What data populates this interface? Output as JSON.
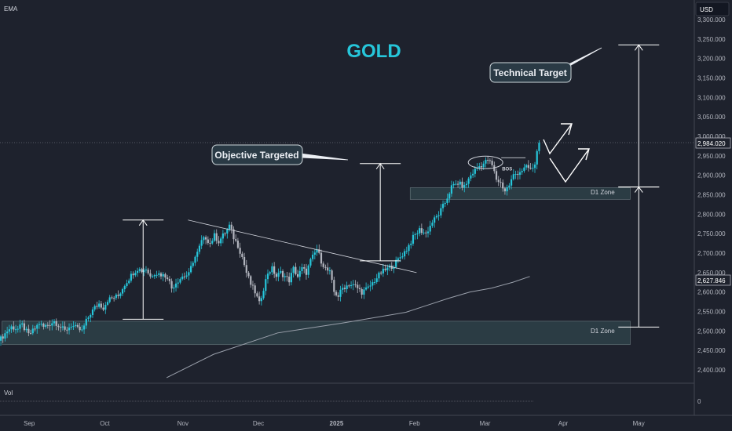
{
  "header": {
    "indicator_label": "EMA",
    "currency_label": "USD"
  },
  "title": "GOLD",
  "callouts": {
    "technical_target": "Technical Target",
    "objective_targeted": "Objective Targeted"
  },
  "markers": {
    "bos": "BOS"
  },
  "zones": {
    "upper_label": "D1 Zone",
    "lower_label": "D1 Zone"
  },
  "price_tags": {
    "last": "2,984.020",
    "ema": "2,627.846"
  },
  "volume_pane": {
    "label": "Vol",
    "axis_value": "0"
  },
  "colors": {
    "background": "#1e222d",
    "up_candle": "#26c6da",
    "down_candle": "#b2b5be",
    "title": "#26c6da",
    "zone_fill": "#2e4048",
    "ema": "#9aa0ab"
  },
  "chart_data": {
    "type": "candlestick",
    "title": "GOLD",
    "ylabel": "USD",
    "ylim": [
      2350,
      3300
    ],
    "y_ticks": [
      "3,300.000",
      "3,250.000",
      "3,200.000",
      "3,150.000",
      "3,100.000",
      "3,050.000",
      "3,000.000",
      "2,950.000",
      "2,900.000",
      "2,850.000",
      "2,800.000",
      "2,750.000",
      "2,700.000",
      "2,650.000",
      "2,600.000",
      "2,550.000",
      "2,500.000",
      "2,450.000",
      "2,400.000"
    ],
    "x_ticks": [
      "Sep",
      "Oct",
      "Nov",
      "Dec",
      "2025",
      "Feb",
      "Mar",
      "Apr",
      "May"
    ],
    "x_range": [
      "2024-08-21",
      "2025-05-10"
    ],
    "grid": false,
    "candle_path": [
      [
        0,
        2480
      ],
      [
        3,
        2500
      ],
      [
        5,
        2510
      ],
      [
        8,
        2505
      ],
      [
        10,
        2515
      ],
      [
        13,
        2490
      ],
      [
        15,
        2500
      ],
      [
        18,
        2520
      ],
      [
        20,
        2510
      ],
      [
        25,
        2525
      ],
      [
        30,
        2500
      ],
      [
        33,
        2515
      ],
      [
        36,
        2505
      ],
      [
        38,
        2500
      ],
      [
        40,
        2525
      ],
      [
        42,
        2545
      ],
      [
        44,
        2560
      ],
      [
        46,
        2570
      ],
      [
        48,
        2560
      ],
      [
        50,
        2580
      ],
      [
        55,
        2590
      ],
      [
        58,
        2620
      ],
      [
        62,
        2650
      ],
      [
        64,
        2660
      ],
      [
        66,
        2655
      ],
      [
        68,
        2660
      ],
      [
        70,
        2640
      ],
      [
        72,
        2650
      ],
      [
        75,
        2645
      ],
      [
        78,
        2640
      ],
      [
        80,
        2610
      ],
      [
        82,
        2625
      ],
      [
        85,
        2640
      ],
      [
        88,
        2645
      ],
      [
        90,
        2680
      ],
      [
        92,
        2700
      ],
      [
        94,
        2730
      ],
      [
        96,
        2740
      ],
      [
        98,
        2725
      ],
      [
        100,
        2745
      ],
      [
        102,
        2730
      ],
      [
        104,
        2745
      ],
      [
        106,
        2760
      ],
      [
        107,
        2770
      ],
      [
        109,
        2740
      ],
      [
        111,
        2720
      ],
      [
        113,
        2690
      ],
      [
        115,
        2650
      ],
      [
        117,
        2620
      ],
      [
        119,
        2600
      ],
      [
        121,
        2570
      ],
      [
        123,
        2610
      ],
      [
        125,
        2650
      ],
      [
        127,
        2660
      ],
      [
        129,
        2640
      ],
      [
        131,
        2650
      ],
      [
        133,
        2640
      ],
      [
        135,
        2630
      ],
      [
        137,
        2660
      ],
      [
        139,
        2640
      ],
      [
        141,
        2660
      ],
      [
        143,
        2650
      ],
      [
        145,
        2680
      ],
      [
        147,
        2700
      ],
      [
        148,
        2710
      ],
      [
        150,
        2680
      ],
      [
        152,
        2660
      ],
      [
        154,
        2650
      ],
      [
        156,
        2600
      ],
      [
        158,
        2590
      ],
      [
        160,
        2610
      ],
      [
        163,
        2620
      ],
      [
        166,
        2615
      ],
      [
        169,
        2600
      ],
      [
        172,
        2610
      ],
      [
        175,
        2630
      ],
      [
        178,
        2650
      ],
      [
        181,
        2660
      ],
      [
        184,
        2670
      ],
      [
        187,
        2690
      ],
      [
        190,
        2710
      ],
      [
        193,
        2740
      ],
      [
        196,
        2760
      ],
      [
        199,
        2750
      ],
      [
        202,
        2780
      ],
      [
        205,
        2800
      ],
      [
        208,
        2830
      ],
      [
        211,
        2870
      ],
      [
        214,
        2880
      ],
      [
        217,
        2870
      ],
      [
        220,
        2900
      ],
      [
        223,
        2920
      ],
      [
        226,
        2930
      ],
      [
        228,
        2940
      ],
      [
        230,
        2925
      ],
      [
        232,
        2890
      ],
      [
        234,
        2880
      ],
      [
        236,
        2860
      ],
      [
        238,
        2875
      ],
      [
        240,
        2900
      ],
      [
        243,
        2910
      ],
      [
        246,
        2920
      ],
      [
        249,
        2915
      ],
      [
        250,
        2930
      ],
      [
        251,
        2960
      ],
      [
        252,
        2990
      ]
    ],
    "ema": [
      [
        78,
        2380
      ],
      [
        100,
        2440
      ],
      [
        130,
        2495
      ],
      [
        160,
        2520
      ],
      [
        190,
        2548
      ],
      [
        200,
        2566
      ],
      [
        210,
        2584
      ],
      [
        220,
        2600
      ],
      [
        230,
        2610
      ],
      [
        240,
        2625
      ],
      [
        248,
        2640
      ]
    ],
    "zones": [
      {
        "label": "D1 Zone",
        "from": [
          192,
          2838
        ],
        "to": [
          295,
          2868
        ]
      },
      {
        "label": "D1 Zone",
        "from": [
          1,
          2465
        ],
        "to": [
          295,
          2525
        ]
      }
    ],
    "trendline": [
      [
        88,
        2785
      ],
      [
        195,
        2650
      ]
    ],
    "projections": [
      {
        "x": 67,
        "from": 2530,
        "to": 2785
      },
      {
        "x": 178,
        "from": 2680,
        "to": 2930
      },
      {
        "x": 299,
        "from": 2510,
        "to": 2870
      },
      {
        "x": 299,
        "from": 2870,
        "to": 3235
      }
    ],
    "breakpoints": [
      {
        "x": 228,
        "y": 2925
      }
    ],
    "markers": [
      {
        "label": "BOS",
        "x": 235,
        "y": 2925
      }
    ],
    "last_price": 2984.02,
    "ema_last": 2627.846
  }
}
